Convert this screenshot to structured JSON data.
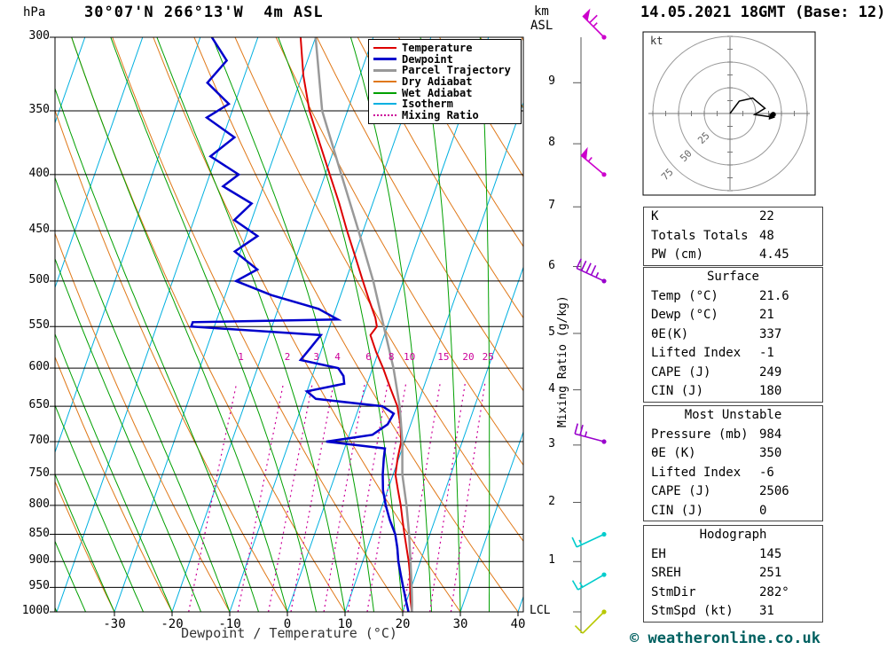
{
  "header": {
    "station_title": "30°07'N 266°13'W  4m ASL",
    "datetime_title": "14.05.2021 18GMT (Base: 12)"
  },
  "copyright": "© weatheronline.co.uk",
  "axes": {
    "pressure_unit": "hPa",
    "pressure_levels": [
      300,
      350,
      400,
      450,
      500,
      550,
      600,
      650,
      700,
      750,
      800,
      850,
      900,
      950,
      1000
    ],
    "temp_ticks": [
      -30,
      -20,
      -10,
      0,
      10,
      20,
      30,
      40
    ],
    "temp_axis_label": "Dewpoint / Temperature (°C)",
    "km_unit_line1": "km",
    "km_unit_line2": "ASL",
    "km_levels": [
      {
        "km": 1,
        "p": 900
      },
      {
        "km": 2,
        "p": 795
      },
      {
        "km": 3,
        "p": 705
      },
      {
        "km": 4,
        "p": 628
      },
      {
        "km": 5,
        "p": 558
      },
      {
        "km": 6,
        "p": 485
      },
      {
        "km": 7,
        "p": 428
      },
      {
        "km": 8,
        "p": 375
      },
      {
        "km": 9,
        "p": 330
      }
    ],
    "lcl_label": "LCL",
    "mixing_ratio_axis_label": "Mixing Ratio (g/kg)"
  },
  "legend": {
    "items": [
      {
        "label": "Temperature",
        "color": "#dd0000",
        "style": "solid",
        "weight": 2
      },
      {
        "label": "Dewpoint",
        "color": "#0000cc",
        "style": "solid",
        "weight": 3
      },
      {
        "label": "Parcel Trajectory",
        "color": "#999999",
        "style": "solid",
        "weight": 3
      },
      {
        "label": "Dry Adiabat",
        "color": "#e07818",
        "style": "solid",
        "weight": 1
      },
      {
        "label": "Wet Adiabat",
        "color": "#00a000",
        "style": "solid",
        "weight": 1
      },
      {
        "label": "Isotherm",
        "color": "#00b0e0",
        "style": "solid",
        "weight": 1
      },
      {
        "label": "Mixing Ratio",
        "color": "#cc0099",
        "style": "dotted",
        "weight": 2
      }
    ]
  },
  "chart_data": {
    "type": "skew-t-log-p",
    "pressure_range_hpa": [
      300,
      1000
    ],
    "temp_ticks_c": [
      -30,
      -20,
      -10,
      0,
      10,
      20,
      30,
      40
    ],
    "isotherm_step_c": 10,
    "dry_adiabat_theta_c": {
      "min": -40,
      "max": 140,
      "step": 10
    },
    "wet_adiabat_t1000_c": {
      "min": -40,
      "max": 35,
      "step": 5
    },
    "mixing_ratio_lines_gkg": [
      1,
      2,
      3,
      4,
      6,
      8,
      10,
      15,
      20,
      25
    ],
    "series": [
      {
        "name": "Temperature",
        "color": "#dd0000",
        "width": 2,
        "points_p_t": [
          [
            1000,
            21.6
          ],
          [
            975,
            20.6
          ],
          [
            950,
            19.8
          ],
          [
            925,
            19
          ],
          [
            900,
            18
          ],
          [
            875,
            16.8
          ],
          [
            850,
            15.6
          ],
          [
            825,
            14.4
          ],
          [
            800,
            13.2
          ],
          [
            775,
            11.8
          ],
          [
            750,
            10.4
          ],
          [
            725,
            9.8
          ],
          [
            700,
            9.4
          ],
          [
            675,
            8.2
          ],
          [
            650,
            6.6
          ],
          [
            625,
            4.2
          ],
          [
            600,
            1.8
          ],
          [
            580,
            -0.4
          ],
          [
            560,
            -2.4
          ],
          [
            550,
            -1.8
          ],
          [
            540,
            -2.6
          ],
          [
            520,
            -4.8
          ],
          [
            500,
            -7
          ],
          [
            475,
            -9.8
          ],
          [
            450,
            -12.8
          ],
          [
            425,
            -15.8
          ],
          [
            400,
            -19.2
          ],
          [
            375,
            -22.8
          ],
          [
            350,
            -26.6
          ],
          [
            325,
            -29.8
          ],
          [
            300,
            -32.6
          ]
        ]
      },
      {
        "name": "Dewpoint",
        "color": "#0000cc",
        "width": 2.5,
        "points_p_t": [
          [
            1000,
            21
          ],
          [
            975,
            19.8
          ],
          [
            950,
            18.6
          ],
          [
            925,
            17.4
          ],
          [
            900,
            16.2
          ],
          [
            875,
            15.2
          ],
          [
            850,
            14
          ],
          [
            825,
            12.2
          ],
          [
            800,
            10.6
          ],
          [
            775,
            9.2
          ],
          [
            750,
            8.2
          ],
          [
            725,
            7.4
          ],
          [
            710,
            7
          ],
          [
            700,
            -3.6
          ],
          [
            690,
            4
          ],
          [
            675,
            6
          ],
          [
            660,
            6.4
          ],
          [
            650,
            4
          ],
          [
            640,
            -8
          ],
          [
            630,
            -10
          ],
          [
            620,
            -4
          ],
          [
            610,
            -4.6
          ],
          [
            600,
            -6
          ],
          [
            590,
            -13
          ],
          [
            575,
            -12
          ],
          [
            560,
            -11
          ],
          [
            550,
            -34
          ],
          [
            545,
            -34
          ],
          [
            542,
            -9
          ],
          [
            530,
            -13
          ],
          [
            515,
            -22
          ],
          [
            500,
            -29
          ],
          [
            488,
            -26
          ],
          [
            470,
            -31
          ],
          [
            455,
            -28
          ],
          [
            440,
            -33
          ],
          [
            425,
            -31
          ],
          [
            410,
            -37
          ],
          [
            400,
            -35
          ],
          [
            385,
            -41
          ],
          [
            370,
            -38
          ],
          [
            355,
            -44
          ],
          [
            345,
            -41
          ],
          [
            330,
            -46
          ],
          [
            315,
            -44
          ],
          [
            300,
            -48
          ]
        ]
      },
      {
        "name": "Parcel Trajectory",
        "color": "#999999",
        "width": 2.5,
        "points_p_t": [
          [
            1000,
            21.6
          ],
          [
            985,
            21.2
          ],
          [
            960,
            20.4
          ],
          [
            925,
            19.2
          ],
          [
            900,
            18.3
          ],
          [
            850,
            16.4
          ],
          [
            800,
            14.2
          ],
          [
            750,
            11.6
          ],
          [
            700,
            9.6
          ],
          [
            650,
            7
          ],
          [
            600,
            3.6
          ],
          [
            550,
            -0.6
          ],
          [
            500,
            -5.2
          ],
          [
            450,
            -10.8
          ],
          [
            400,
            -17.2
          ],
          [
            350,
            -24.4
          ],
          [
            300,
            -30
          ]
        ]
      }
    ]
  },
  "wind_barbs": [
    {
      "p": 300,
      "color": "#cc00cc",
      "speed_kt": 65,
      "angle_deg": 135
    },
    {
      "p": 400,
      "color": "#cc00cc",
      "speed_kt": 55,
      "angle_deg": 140
    },
    {
      "p": 500,
      "color": "#9900cc",
      "speed_kt": 45,
      "angle_deg": 155
    },
    {
      "p": 700,
      "color": "#9900cc",
      "speed_kt": 25,
      "angle_deg": 165
    },
    {
      "p": 850,
      "color": "#00cccc",
      "speed_kt": 15,
      "angle_deg": 205
    },
    {
      "p": 925,
      "color": "#00cccc",
      "speed_kt": 15,
      "angle_deg": 210
    },
    {
      "p": 1000,
      "color": "#b8c800",
      "speed_kt": 10,
      "angle_deg": 225
    }
  ],
  "hodograph": {
    "unit_label": "kt",
    "ring_labels_kt": [
      25,
      50,
      75
    ],
    "trace_kt_xy": [
      [
        0,
        0
      ],
      [
        9,
        -12
      ],
      [
        22,
        -15
      ],
      [
        34,
        -5
      ],
      [
        24,
        1
      ],
      [
        38,
        3
      ]
    ],
    "marker_kt_xy": [
      42,
      1
    ]
  },
  "panels": {
    "indices": {
      "rows": [
        [
          "K",
          "22"
        ],
        [
          "Totals Totals",
          "48"
        ],
        [
          "PW (cm)",
          "4.45"
        ]
      ]
    },
    "surface": {
      "title": "Surface",
      "rows": [
        [
          "Temp (°C)",
          "21.6"
        ],
        [
          "Dewp (°C)",
          "21"
        ],
        [
          "θE(K)",
          "337"
        ],
        [
          "Lifted Index",
          "-1"
        ],
        [
          "CAPE (J)",
          "249"
        ],
        [
          "CIN (J)",
          "180"
        ]
      ]
    },
    "most_unstable": {
      "title": "Most Unstable",
      "rows": [
        [
          "Pressure (mb)",
          "984"
        ],
        [
          "θE (K)",
          "350"
        ],
        [
          "Lifted Index",
          "-6"
        ],
        [
          "CAPE (J)",
          "2506"
        ],
        [
          "CIN (J)",
          "0"
        ]
      ]
    },
    "hodograph_panel": {
      "title": "Hodograph",
      "rows": [
        [
          "EH",
          "145"
        ],
        [
          "SREH",
          "251"
        ],
        [
          "StmDir",
          "282°"
        ],
        [
          "StmSpd (kt)",
          "31"
        ]
      ]
    }
  }
}
